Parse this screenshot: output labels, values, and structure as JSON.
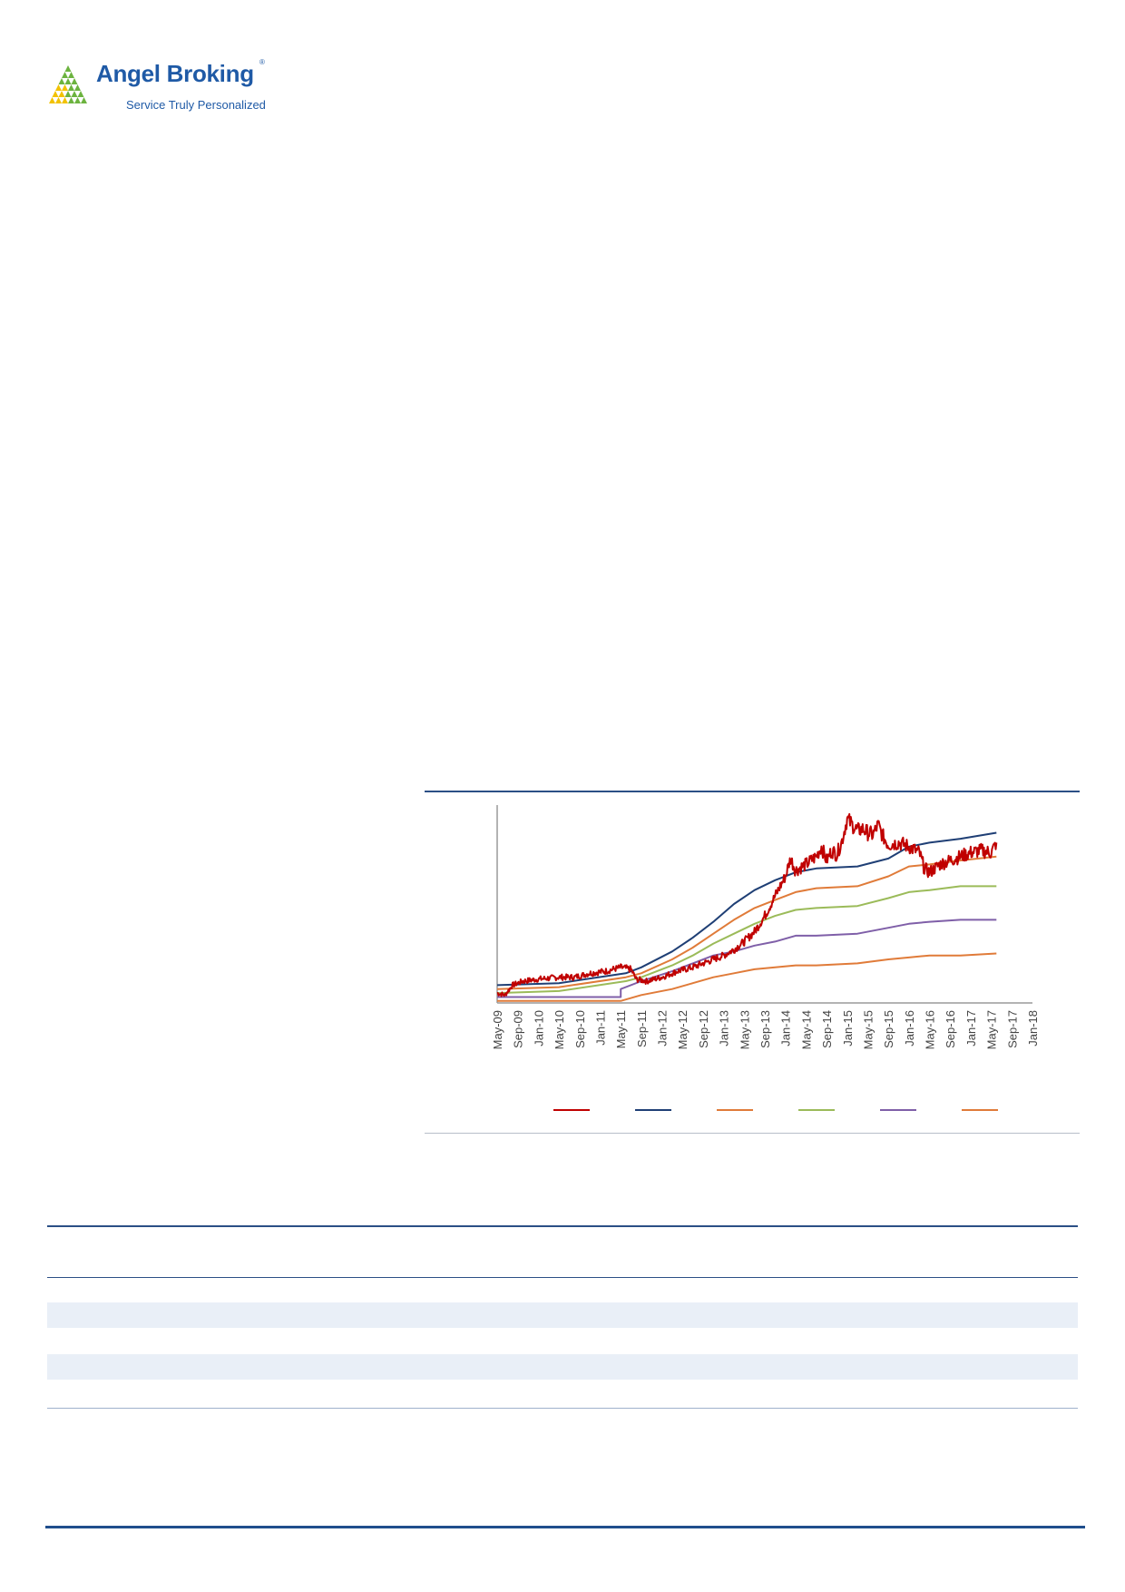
{
  "brand": {
    "name": "Angel Broking",
    "registered_mark": "®",
    "tagline": "Service Truly Personalized",
    "colors": {
      "blue": "#1f5aa6",
      "green": "#6cb33f",
      "yellow": "#f2c200"
    }
  },
  "colors": {
    "rule_dark": "#2b4f85",
    "rule_light": "#b7bfca",
    "table_band": "#e9eff7",
    "axis": "#9a9a9a"
  },
  "chart_data": {
    "type": "line",
    "title": "",
    "xlabel": "",
    "ylabel": "",
    "x_ticks": [
      "May-09",
      "Sep-09",
      "Jan-10",
      "May-10",
      "Sep-10",
      "Jan-11",
      "May-11",
      "Sep-11",
      "Jan-12",
      "May-12",
      "Sep-12",
      "Jan-13",
      "May-13",
      "Sep-13",
      "Jan-14",
      "May-14",
      "Sep-14",
      "Jan-15",
      "May-15",
      "Sep-15",
      "Jan-16",
      "May-16",
      "Sep-16",
      "Jan-17",
      "May-17",
      "Sep-17",
      "Jan-18"
    ],
    "xlim_months": [
      0,
      104
    ],
    "ylim": [
      0,
      100
    ],
    "grid": false,
    "legend_position": "bottom",
    "legend_labels_visible": false,
    "series": [
      {
        "color": "#c00000",
        "width": 2,
        "noise": true,
        "points": [
          [
            0,
            5
          ],
          [
            1.5,
            4
          ],
          [
            3,
            9
          ],
          [
            5,
            11
          ],
          [
            8,
            12
          ],
          [
            12,
            13
          ],
          [
            15,
            13
          ],
          [
            18,
            15
          ],
          [
            21,
            16
          ],
          [
            24,
            18
          ],
          [
            26,
            17
          ],
          [
            27,
            12
          ],
          [
            29,
            11
          ],
          [
            32,
            13
          ],
          [
            35,
            16
          ],
          [
            38,
            18
          ],
          [
            41,
            21
          ],
          [
            44,
            24
          ],
          [
            46,
            27
          ],
          [
            48,
            31
          ],
          [
            50,
            36
          ],
          [
            52,
            44
          ],
          [
            54,
            54
          ],
          [
            56,
            64
          ],
          [
            57,
            73
          ],
          [
            58,
            67
          ],
          [
            60,
            70
          ],
          [
            62,
            74
          ],
          [
            63,
            79
          ],
          [
            64,
            72
          ],
          [
            65,
            77
          ],
          [
            66,
            75
          ],
          [
            67,
            82
          ],
          [
            68,
            93
          ],
          [
            69,
            90
          ],
          [
            70,
            87
          ],
          [
            71,
            88
          ],
          [
            72,
            86
          ],
          [
            73,
            85
          ],
          [
            74,
            90
          ],
          [
            75,
            84
          ],
          [
            76,
            80
          ],
          [
            78,
            81
          ],
          [
            80,
            79
          ],
          [
            82,
            76
          ],
          [
            83,
            68
          ],
          [
            84,
            66
          ],
          [
            86,
            70
          ],
          [
            88,
            72
          ],
          [
            90,
            74
          ],
          [
            92,
            76
          ],
          [
            94,
            77
          ],
          [
            96,
            76
          ],
          [
            97,
            81
          ]
        ]
      },
      {
        "color": "#1f3f75",
        "width": 2,
        "noise": false,
        "points": [
          [
            0,
            9
          ],
          [
            12,
            10
          ],
          [
            25,
            15
          ],
          [
            28,
            18
          ],
          [
            34,
            26
          ],
          [
            38,
            33
          ],
          [
            42,
            41
          ],
          [
            46,
            50
          ],
          [
            50,
            57
          ],
          [
            54,
            62
          ],
          [
            58,
            66
          ],
          [
            62,
            68
          ],
          [
            70,
            69
          ],
          [
            76,
            73
          ],
          [
            80,
            79
          ],
          [
            84,
            81
          ],
          [
            90,
            83
          ],
          [
            97,
            86
          ]
        ]
      },
      {
        "color": "#e07b39",
        "width": 2,
        "noise": false,
        "points": [
          [
            0,
            7
          ],
          [
            12,
            8
          ],
          [
            25,
            13
          ],
          [
            28,
            15
          ],
          [
            34,
            22
          ],
          [
            38,
            28
          ],
          [
            42,
            35
          ],
          [
            46,
            42
          ],
          [
            50,
            48
          ],
          [
            54,
            52
          ],
          [
            58,
            56
          ],
          [
            62,
            58
          ],
          [
            70,
            59
          ],
          [
            76,
            64
          ],
          [
            80,
            69
          ],
          [
            84,
            70
          ],
          [
            90,
            72
          ],
          [
            97,
            74
          ]
        ]
      },
      {
        "color": "#9bbb59",
        "width": 2,
        "noise": false,
        "points": [
          [
            0,
            5
          ],
          [
            12,
            6
          ],
          [
            25,
            11
          ],
          [
            28,
            13
          ],
          [
            34,
            19
          ],
          [
            38,
            24
          ],
          [
            42,
            30
          ],
          [
            46,
            35
          ],
          [
            50,
            40
          ],
          [
            54,
            44
          ],
          [
            58,
            47
          ],
          [
            62,
            48
          ],
          [
            70,
            49
          ],
          [
            76,
            53
          ],
          [
            80,
            56
          ],
          [
            84,
            57
          ],
          [
            90,
            59
          ],
          [
            97,
            59
          ]
        ]
      },
      {
        "color": "#7f5fa8",
        "width": 2,
        "noise": false,
        "points": [
          [
            0,
            3
          ],
          [
            12,
            3
          ],
          [
            24,
            3
          ],
          [
            24,
            7
          ],
          [
            28,
            11
          ],
          [
            34,
            16
          ],
          [
            38,
            20
          ],
          [
            42,
            24
          ],
          [
            46,
            26
          ],
          [
            50,
            29
          ],
          [
            54,
            31
          ],
          [
            58,
            34
          ],
          [
            62,
            34
          ],
          [
            70,
            35
          ],
          [
            76,
            38
          ],
          [
            80,
            40
          ],
          [
            84,
            41
          ],
          [
            90,
            42
          ],
          [
            97,
            42
          ]
        ]
      },
      {
        "color": "#e07b39",
        "width": 2,
        "noise": false,
        "points": [
          [
            0,
            1
          ],
          [
            12,
            1
          ],
          [
            24,
            1
          ],
          [
            28,
            4
          ],
          [
            34,
            7
          ],
          [
            38,
            10
          ],
          [
            42,
            13
          ],
          [
            46,
            15
          ],
          [
            50,
            17
          ],
          [
            54,
            18
          ],
          [
            58,
            19
          ],
          [
            62,
            19
          ],
          [
            70,
            20
          ],
          [
            76,
            22
          ],
          [
            80,
            23
          ],
          [
            84,
            24
          ],
          [
            90,
            24
          ],
          [
            97,
            25
          ]
        ]
      }
    ]
  },
  "table": {
    "rows": 5,
    "banded_rows": [
      2,
      4
    ]
  }
}
